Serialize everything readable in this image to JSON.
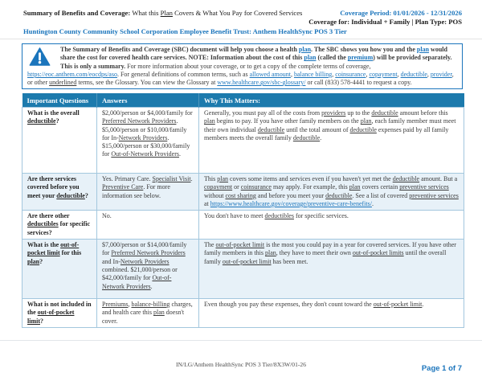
{
  "colors": {
    "accent_blue": "#1b75bc",
    "table_header_bg": "#1c7aad",
    "row_alt_bg": "#e7f1f8",
    "table_border": "#a3c7de"
  },
  "header": {
    "title_segments": [
      {
        "t": "Summary of Benefits and Coverage: ",
        "b": true
      },
      {
        "t": "What this "
      },
      {
        "t": "Plan",
        "u": true
      },
      {
        "t": " Covers & What You Pay for Covered Services"
      }
    ],
    "coverage_period": "Coverage Period: 01/01/2026 - 12/31/2026",
    "coverage_for": "Coverage for: Individual + Family | Plan Type: POS",
    "plan_name": "Huntington County Community School Corporation Employee Benefit Trust: Anthem HealthSync POS 3 Tier"
  },
  "notice": {
    "icon": "warning-triangle-icon",
    "segments": [
      {
        "t": "The Summary of Benefits and Coverage (SBC) document will help you choose a health ",
        "b": true
      },
      {
        "t": "plan",
        "b": true,
        "l": true
      },
      {
        "t": ". The SBC shows you how you and the ",
        "b": true
      },
      {
        "t": "plan",
        "b": true,
        "l": true
      },
      {
        "t": " would share the cost for covered health care services. NOTE: Information about the cost of this ",
        "b": true
      },
      {
        "t": "plan",
        "b": true,
        "l": true
      },
      {
        "t": " (called the ",
        "b": true
      },
      {
        "t": "premium",
        "b": true,
        "l": true
      },
      {
        "t": ") will be provided separately. This is only a summary. ",
        "b": true
      },
      {
        "t": "For more information about your coverage, or to get a copy of the complete terms of coverage, "
      },
      {
        "t": "https://eoc.anthem.com/eocdps/aso",
        "l": true
      },
      {
        "t": ". For general definitions of common terms, such as "
      },
      {
        "t": "allowed amount",
        "l": true
      },
      {
        "t": ", "
      },
      {
        "t": "balance billing",
        "l": true
      },
      {
        "t": ", "
      },
      {
        "t": "coinsurance",
        "l": true
      },
      {
        "t": ", "
      },
      {
        "t": "copayment",
        "l": true
      },
      {
        "t": ", "
      },
      {
        "t": "deductible",
        "l": true
      },
      {
        "t": ", "
      },
      {
        "t": "provider",
        "l": true
      },
      {
        "t": ", or other "
      },
      {
        "t": "underlined",
        "u": true
      },
      {
        "t": " terms, see the Glossary. You can view the Glossary at "
      },
      {
        "t": "www.healthcare.gov/sbc-glossary/",
        "l": true
      },
      {
        "t": " or call (833) 578-4441 to request a copy."
      }
    ]
  },
  "table": {
    "columns": [
      "Important Questions",
      "Answers",
      "Why This Matters:"
    ],
    "rows": [
      {
        "question": [
          {
            "t": "What is the overall ",
            "b": true
          },
          {
            "t": "deductible",
            "b": true,
            "u": true
          },
          {
            "t": "?",
            "b": true
          }
        ],
        "answer": [
          {
            "t": "$2,000/person or $4,000/family for "
          },
          {
            "t": "Preferred Network Providers",
            "u": true
          },
          {
            "t": ". $5,000/person or $10,000/family for In-"
          },
          {
            "t": "Network Providers",
            "u": true
          },
          {
            "t": ". $15,000/person or $30,000/family for "
          },
          {
            "t": "Out-of-Network Providers",
            "u": true
          },
          {
            "t": "."
          }
        ],
        "why": [
          {
            "t": "Generally, you must pay all of the costs from "
          },
          {
            "t": "providers",
            "u": true
          },
          {
            "t": " up to the "
          },
          {
            "t": "deductible",
            "u": true
          },
          {
            "t": " amount before this "
          },
          {
            "t": "plan",
            "u": true
          },
          {
            "t": " begins to pay. If you have other family members on the "
          },
          {
            "t": "plan",
            "u": true
          },
          {
            "t": ", each family member must meet their own individual "
          },
          {
            "t": "deductible",
            "u": true
          },
          {
            "t": " until the total amount of "
          },
          {
            "t": "deductible",
            "u": true
          },
          {
            "t": " expenses paid by all family members meets the overall family "
          },
          {
            "t": "deductible",
            "u": true
          },
          {
            "t": "."
          }
        ]
      },
      {
        "question": [
          {
            "t": "Are there services covered before you meet your ",
            "b": true
          },
          {
            "t": "deductible",
            "b": true,
            "u": true
          },
          {
            "t": "?",
            "b": true
          }
        ],
        "answer": [
          {
            "t": "Yes. Primary Care. "
          },
          {
            "t": "Specialist Visit",
            "u": true
          },
          {
            "t": ". "
          },
          {
            "t": "Preventive Care",
            "u": true
          },
          {
            "t": ". For more information see below."
          }
        ],
        "why": [
          {
            "t": "This "
          },
          {
            "t": "plan",
            "u": true
          },
          {
            "t": " covers some items and services even if you haven't yet met the "
          },
          {
            "t": "deductible",
            "u": true
          },
          {
            "t": " amount. But a "
          },
          {
            "t": "copayment",
            "u": true
          },
          {
            "t": " or "
          },
          {
            "t": "coinsurance",
            "u": true
          },
          {
            "t": " may apply. For example, this "
          },
          {
            "t": "plan",
            "u": true
          },
          {
            "t": " covers certain "
          },
          {
            "t": "preventive services",
            "u": true
          },
          {
            "t": " without "
          },
          {
            "t": "cost sharing",
            "u": true
          },
          {
            "t": " and before you meet your "
          },
          {
            "t": "deductible",
            "u": true
          },
          {
            "t": ". See a list of covered "
          },
          {
            "t": "preventive services",
            "u": true
          },
          {
            "t": " at "
          },
          {
            "t": "https://www.healthcare.gov/coverage/preventive-care-benefits/",
            "l": true
          },
          {
            "t": "."
          }
        ]
      },
      {
        "question": [
          {
            "t": "Are there other ",
            "b": true
          },
          {
            "t": "deductibles",
            "b": true,
            "u": true
          },
          {
            "t": " for specific services?",
            "b": true
          }
        ],
        "answer": [
          {
            "t": "No."
          }
        ],
        "why": [
          {
            "t": "You don't have to meet "
          },
          {
            "t": "deductibles",
            "u": true
          },
          {
            "t": " for specific services."
          }
        ]
      },
      {
        "question": [
          {
            "t": "What is the ",
            "b": true
          },
          {
            "t": "out-of-pocket limit",
            "b": true,
            "u": true
          },
          {
            "t": " for this ",
            "b": true
          },
          {
            "t": "plan",
            "b": true,
            "u": true
          },
          {
            "t": "?",
            "b": true
          }
        ],
        "answer": [
          {
            "t": "$7,000/person or $14,000/family for "
          },
          {
            "t": "Preferred Network Providers",
            "u": true
          },
          {
            "t": " and In-"
          },
          {
            "t": "Network Providers",
            "u": true
          },
          {
            "t": " combined. $21,000/person or $42,000/family for "
          },
          {
            "t": "Out-of-Network Providers",
            "u": true
          },
          {
            "t": "."
          }
        ],
        "why": [
          {
            "t": "The "
          },
          {
            "t": "out-of-pocket limit",
            "u": true
          },
          {
            "t": " is the most you could pay in a year for covered services. If you have other family members in this "
          },
          {
            "t": "plan",
            "u": true
          },
          {
            "t": ", they have to meet their own "
          },
          {
            "t": "out-of-pocket limits",
            "u": true
          },
          {
            "t": " until the overall family "
          },
          {
            "t": "out-of-pocket limit",
            "u": true
          },
          {
            "t": " has been met."
          }
        ]
      },
      {
        "question": [
          {
            "t": "What is not included in the ",
            "b": true
          },
          {
            "t": "out-of-pocket limit",
            "b": true,
            "u": true
          },
          {
            "t": "?",
            "b": true
          }
        ],
        "answer": [
          {
            "t": "Premiums",
            "u": true
          },
          {
            "t": ", "
          },
          {
            "t": "balance-billing",
            "u": true
          },
          {
            "t": " charges, and health care this "
          },
          {
            "t": "plan",
            "u": true
          },
          {
            "t": " doesn't cover."
          }
        ],
        "why": [
          {
            "t": "Even though you pay these expenses, they don't count toward the "
          },
          {
            "t": "out-of-pocket limit",
            "u": true
          },
          {
            "t": "."
          }
        ]
      }
    ]
  },
  "footer": {
    "form_code": "IN/LG/Anthem HealthSync POS 3 Tier/8X3W/01-26",
    "page_number": "Page 1 of 7"
  }
}
